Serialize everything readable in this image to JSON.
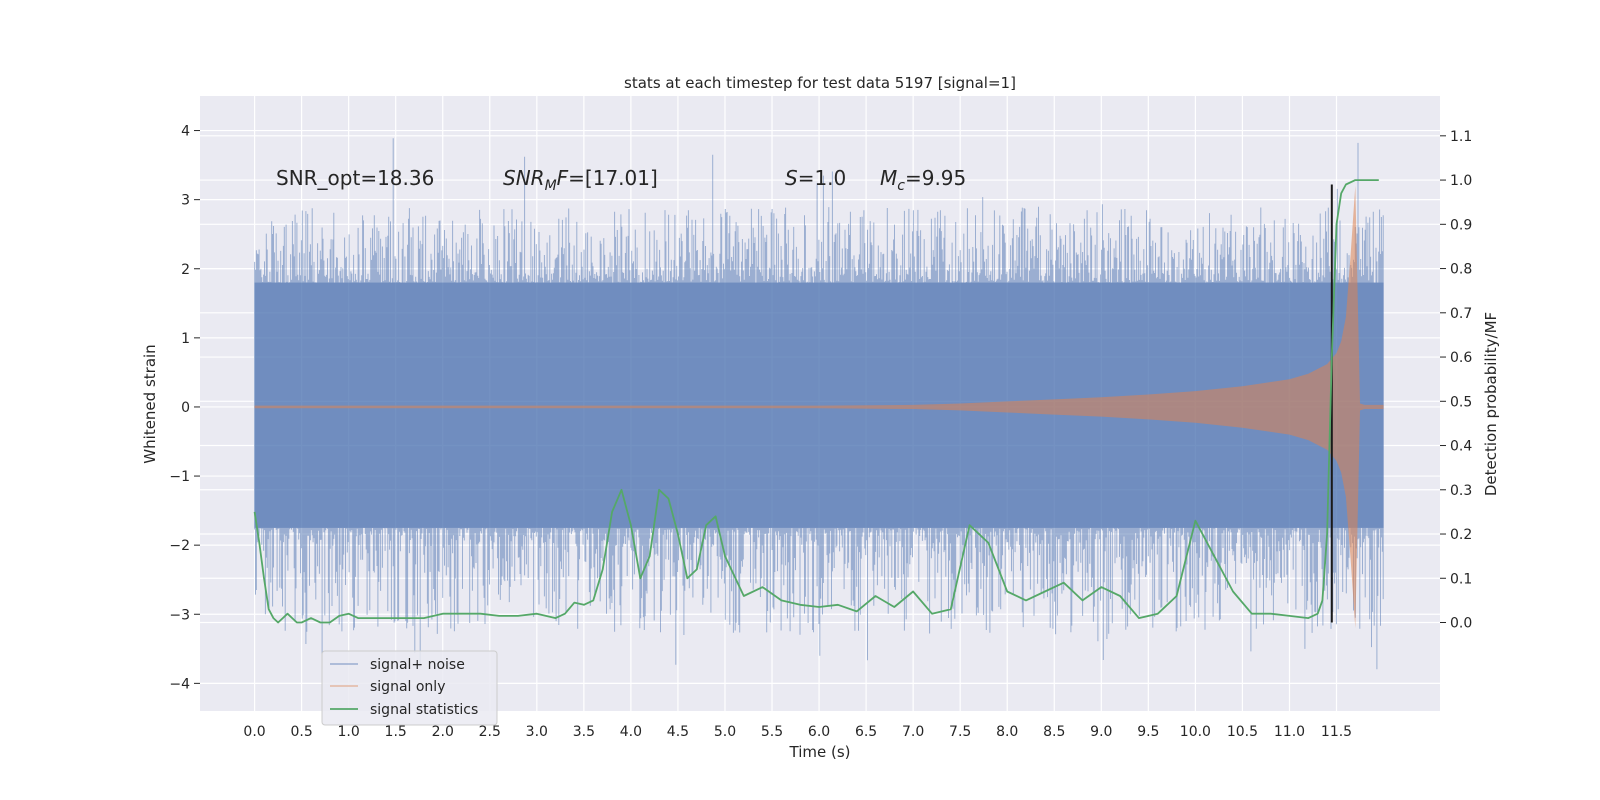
{
  "chart_data": {
    "type": "line",
    "title": "stats at each timestep for test data 5197 [signal=1]",
    "xlabel": "Time (s)",
    "ylabel": "Whitened strain",
    "ylabel_right": "Detection probability/MF",
    "xlim": [
      -0.58,
      12.6
    ],
    "ylim": [
      -4.4,
      4.5
    ],
    "ylim_right": [
      -0.2,
      1.19
    ],
    "x_ticks": [
      "0.0",
      "0.5",
      "1.0",
      "1.5",
      "2.0",
      "2.5",
      "3.0",
      "3.5",
      "4.0",
      "4.5",
      "5.0",
      "5.5",
      "6.0",
      "6.5",
      "7.0",
      "7.5",
      "8.0",
      "8.5",
      "9.0",
      "9.5",
      "10.0",
      "10.5",
      "11.0",
      "11.5"
    ],
    "y_ticks": [
      "4",
      "3",
      "2",
      "1",
      "0",
      "−1",
      "−2",
      "−3",
      "−4"
    ],
    "y_ticks_right": [
      "1.1",
      "1.0",
      "0.9",
      "0.8",
      "0.7",
      "0.6",
      "0.5",
      "0.4",
      "0.3",
      "0.2",
      "0.1",
      "0.0"
    ],
    "grid": true,
    "colors": {
      "background": "#eaeaf2",
      "grid": "#ffffff",
      "noise": "#4c72b0",
      "signal": "#dd8452",
      "stat": "#55a868",
      "marker": "#1a1a1a"
    },
    "annotations": {
      "snr_opt": "SNR_opt=18.36",
      "snr_mf_base": "SNR",
      "snr_mf_sub": "M",
      "snr_mf_rest": "F=[17.01]",
      "s_var": "S",
      "s_val": "=1.0",
      "mc_var": "M",
      "mc_sub": "c",
      "mc_val": "=9.95"
    },
    "legend": {
      "placement": "lower-left",
      "entries": [
        "signal+ noise",
        "signal only",
        "signal statistics"
      ]
    },
    "series": [
      {
        "name": "signal+ noise",
        "kind": "noise-band",
        "x_range": [
          0.0,
          12.0
        ],
        "dense_band": [
          -1.75,
          1.8
        ],
        "typical_spikes": [
          -3.3,
          2.9
        ],
        "extreme_spikes": [
          -3.8,
          4.1
        ]
      },
      {
        "name": "signal only",
        "kind": "chirp-envelope",
        "x": [
          0,
          3,
          5,
          6,
          7,
          7.5,
          8,
          8.5,
          9,
          9.5,
          10,
          10.5,
          11,
          11.2,
          11.4,
          11.5,
          11.55,
          11.6,
          11.65,
          11.7,
          11.75,
          11.8,
          12.0
        ],
        "amp": [
          0.02,
          0.02,
          0.02,
          0.02,
          0.03,
          0.05,
          0.08,
          0.11,
          0.14,
          0.18,
          0.23,
          0.3,
          0.4,
          0.48,
          0.62,
          0.78,
          0.95,
          1.3,
          2.2,
          3.2,
          0.05,
          0.03,
          0.03
        ]
      },
      {
        "name": "signal statistics",
        "kind": "line",
        "x": [
          0.0,
          0.05,
          0.1,
          0.15,
          0.2,
          0.25,
          0.3,
          0.35,
          0.4,
          0.45,
          0.5,
          0.6,
          0.7,
          0.8,
          0.9,
          1.0,
          1.1,
          1.2,
          1.4,
          1.6,
          1.8,
          2.0,
          2.2,
          2.4,
          2.6,
          2.8,
          3.0,
          3.2,
          3.3,
          3.4,
          3.5,
          3.6,
          3.7,
          3.8,
          3.9,
          4.0,
          4.1,
          4.2,
          4.3,
          4.4,
          4.5,
          4.6,
          4.7,
          4.8,
          4.9,
          5.0,
          5.2,
          5.4,
          5.6,
          5.8,
          6.0,
          6.2,
          6.4,
          6.6,
          6.8,
          7.0,
          7.2,
          7.4,
          7.6,
          7.8,
          8.0,
          8.2,
          8.4,
          8.6,
          8.8,
          9.0,
          9.2,
          9.4,
          9.6,
          9.8,
          10.0,
          10.2,
          10.4,
          10.6,
          10.8,
          11.0,
          11.2,
          11.3,
          11.35,
          11.4,
          11.45,
          11.5,
          11.55,
          11.6,
          11.7,
          11.8,
          11.9,
          11.95
        ],
        "y": [
          0.25,
          0.18,
          0.1,
          0.03,
          0.01,
          0.0,
          0.01,
          0.02,
          0.01,
          0.0,
          0.0,
          0.01,
          0.0,
          0.0,
          0.015,
          0.02,
          0.01,
          0.01,
          0.01,
          0.01,
          0.01,
          0.02,
          0.02,
          0.02,
          0.015,
          0.015,
          0.02,
          0.01,
          0.02,
          0.045,
          0.04,
          0.05,
          0.12,
          0.25,
          0.3,
          0.22,
          0.1,
          0.15,
          0.3,
          0.28,
          0.2,
          0.1,
          0.12,
          0.22,
          0.24,
          0.15,
          0.06,
          0.08,
          0.05,
          0.04,
          0.035,
          0.04,
          0.025,
          0.06,
          0.035,
          0.07,
          0.02,
          0.03,
          0.22,
          0.18,
          0.07,
          0.05,
          0.07,
          0.09,
          0.05,
          0.08,
          0.06,
          0.01,
          0.02,
          0.06,
          0.23,
          0.15,
          0.07,
          0.02,
          0.02,
          0.015,
          0.01,
          0.02,
          0.05,
          0.2,
          0.6,
          0.9,
          0.97,
          0.99,
          1.0,
          1.0,
          1.0,
          1.0
        ]
      },
      {
        "name": "marker",
        "kind": "vline",
        "x": 11.45,
        "y_top": 0.99,
        "y_bottom": 0.0
      }
    ]
  }
}
